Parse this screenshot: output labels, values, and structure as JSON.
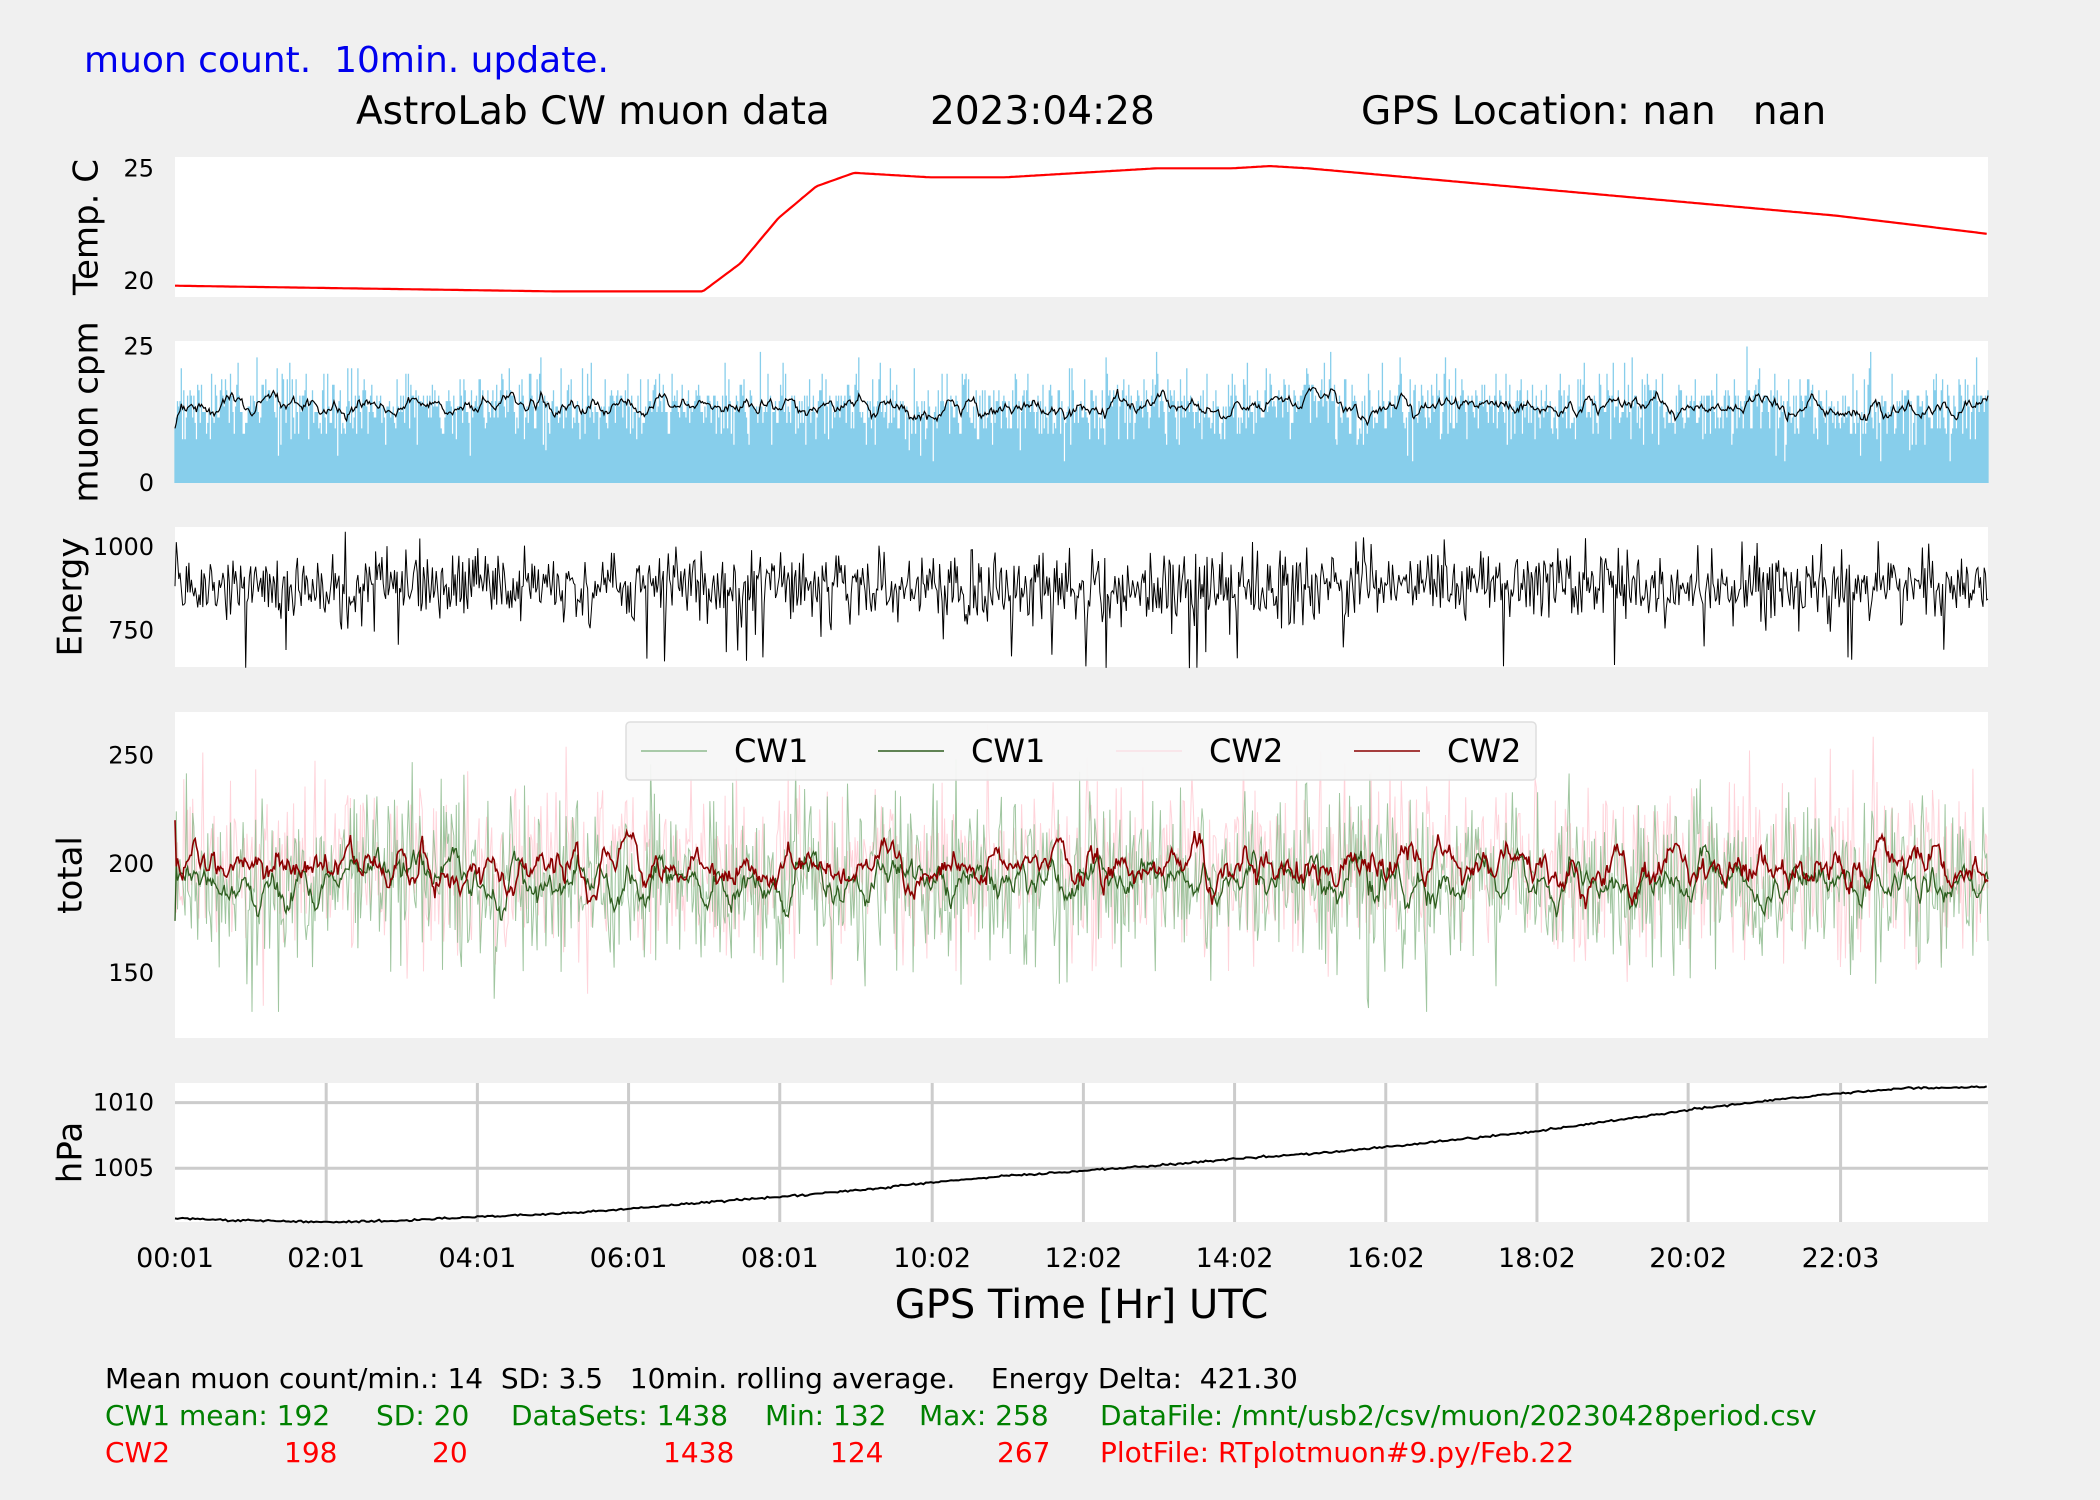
{
  "header": {
    "subtitle": "muon count.  10min. update.",
    "title_left": "AstroLab CW muon data",
    "title_date": "2023:04:28",
    "title_gps": "GPS Location: nan   nan"
  },
  "colors": {
    "background": "#f0f0f0",
    "plot_face": "#ffffff",
    "temperature": "#ff0000",
    "muon_bars": "#87ceeb",
    "cw1_raw": "#8fbc8f",
    "cw1_avg": "#2e5d1e",
    "cw2_raw": "#ffc0cb",
    "cw2_avg": "#8b0000",
    "green_text": "#008000",
    "red_text": "#ff0000"
  },
  "chart_data": [
    {
      "type": "line",
      "ylabel": "Temp. C",
      "yticks": [
        20,
        25
      ],
      "ylim": [
        19.3,
        25.5
      ],
      "x": [
        "00:01",
        "01:00",
        "02:00",
        "03:00",
        "04:00",
        "05:00",
        "06:00",
        "07:00",
        "07:30",
        "08:00",
        "08:30",
        "09:00",
        "10:00",
        "11:00",
        "12:00",
        "13:00",
        "14:00",
        "14:30",
        "15:00",
        "16:00",
        "17:00",
        "18:00",
        "19:00",
        "20:00",
        "21:00",
        "22:00",
        "23:00",
        "23:59"
      ],
      "series": [
        {
          "values": [
            19.8,
            19.75,
            19.7,
            19.65,
            19.6,
            19.55,
            19.55,
            19.55,
            20.8,
            22.8,
            24.2,
            24.8,
            24.6,
            24.6,
            24.8,
            25.0,
            25.0,
            25.1,
            25.0,
            24.7,
            24.4,
            24.1,
            23.8,
            23.5,
            23.2,
            22.9,
            22.5,
            22.1
          ]
        }
      ]
    },
    {
      "type": "bar",
      "ylabel": "muon cpm",
      "yticks": [
        0,
        25
      ],
      "ylim": [
        0,
        26
      ],
      "series": [
        {
          "mean": 14,
          "sd": 3.5,
          "min": 3,
          "max": 25,
          "rolling_avg_minutes": 10
        }
      ]
    },
    {
      "type": "line",
      "ylabel": "Energy",
      "yticks": [
        750,
        1000
      ],
      "ylim": [
        640,
        1060
      ],
      "series": [
        {
          "mean": 880,
          "min": 630,
          "max": 1050
        }
      ]
    },
    {
      "type": "line",
      "ylabel": "total",
      "yticks": [
        150,
        200,
        250
      ],
      "ylim": [
        120,
        270
      ],
      "legend": "upper-center",
      "series": [
        {
          "name": "CW1",
          "mean": 192,
          "sd": 20,
          "min": 132,
          "max": 258
        },
        {
          "name": "CW1",
          "mean": 192
        },
        {
          "name": "CW2",
          "mean": 198,
          "sd": 20,
          "min": 124,
          "max": 267
        },
        {
          "name": "CW2",
          "mean": 198
        }
      ]
    },
    {
      "type": "line",
      "ylabel": "hPa",
      "yticks": [
        1005,
        1010
      ],
      "ylim": [
        1000.9,
        1011.5
      ],
      "grid": true,
      "x": [
        "00:01",
        "01:00",
        "02:00",
        "03:00",
        "04:00",
        "05:00",
        "06:00",
        "07:00",
        "08:00",
        "09:00",
        "10:00",
        "11:00",
        "12:00",
        "13:00",
        "14:00",
        "15:00",
        "16:00",
        "17:00",
        "18:00",
        "19:00",
        "20:00",
        "21:00",
        "22:00",
        "23:00",
        "23:59"
      ],
      "series": [
        {
          "values": [
            1001.2,
            1001.0,
            1000.9,
            1001.0,
            1001.3,
            1001.5,
            1001.9,
            1002.4,
            1002.8,
            1003.3,
            1003.9,
            1004.4,
            1004.8,
            1005.2,
            1005.7,
            1006.1,
            1006.6,
            1007.2,
            1007.8,
            1008.6,
            1009.4,
            1010.1,
            1010.7,
            1011.1,
            1011.2
          ]
        }
      ]
    }
  ],
  "x_axis": {
    "label": "GPS Time  [Hr] UTC",
    "ticks": [
      "00:01",
      "02:01",
      "04:01",
      "06:01",
      "08:01",
      "10:02",
      "12:02",
      "14:02",
      "16:02",
      "18:02",
      "20:02",
      "22:03"
    ]
  },
  "footer": {
    "line1": "Mean muon count/min.: 14  SD: 3.5   10min. rolling average.    Energy Delta:  421.30",
    "cw1": {
      "label": "CW1 mean: 192",
      "sd": "SD: 20",
      "datasets": "DataSets: 1438",
      "min": "Min: 132",
      "max": "Max: 258",
      "file": "DataFile: /mnt/usb2/csv/muon/20230428period.csv"
    },
    "cw2": {
      "label": "CW2",
      "mean": "198",
      "sd": "20",
      "datasets": "1438",
      "min": "124",
      "max": "267",
      "file": "PlotFile: RTplotmuon#9.py/Feb.22"
    }
  }
}
